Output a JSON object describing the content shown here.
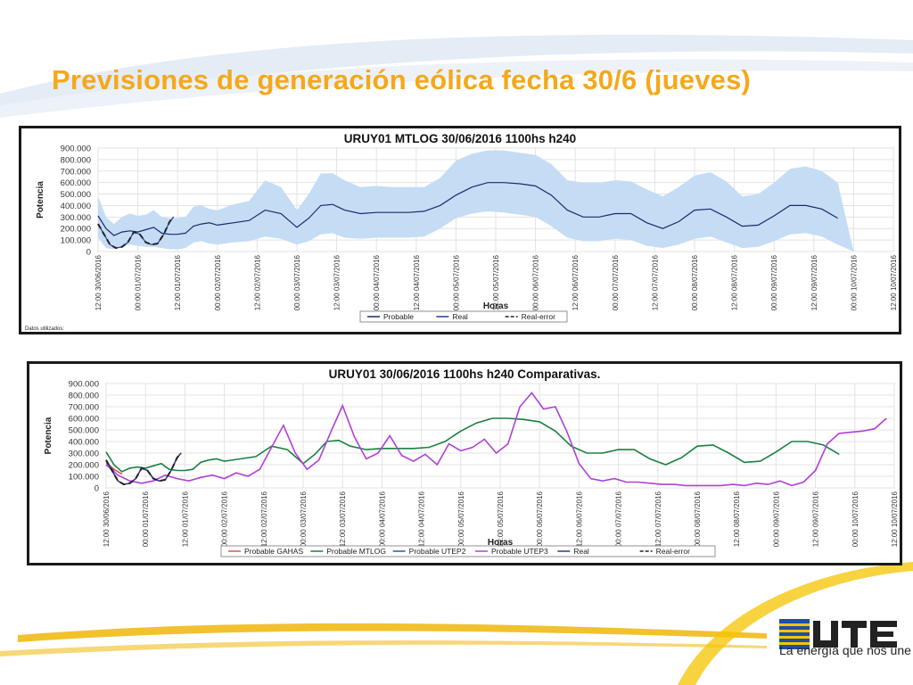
{
  "slide": {
    "title": "Previsiones de generación eólica fecha 30/6 (jueves)",
    "colors": {
      "title": "#f5a81a",
      "accent_line": "#f2c12e",
      "swoosh": "#c9d9ec"
    }
  },
  "logo": {
    "text": "UTE",
    "tagline": "La energía que nos une",
    "colors": {
      "blue": "#1f4fa0",
      "yellow": "#f5c400",
      "dark": "#222222"
    }
  },
  "chart_data": [
    {
      "type": "area",
      "title": "URUY01  MTLOG  30/06/2016  1100hs   h240",
      "xlabel": "Horas",
      "ylabel": "Potencia",
      "ylim": [
        0,
        900000
      ],
      "yticks": [
        "900.000",
        "800.000",
        "700.000",
        "600.000",
        "500.000",
        "400.000",
        "300.000",
        "200.000",
        "100.000",
        "0"
      ],
      "ytick_values": [
        900000,
        800000,
        700000,
        600000,
        500000,
        400000,
        300000,
        200000,
        100000,
        0
      ],
      "xticks": [
        "12:00 30/06/2016",
        "00:00 01/07/2016",
        "12:00 01/07/2016",
        "00:00 02/07/2016",
        "12:00 02/07/2016",
        "00:00 03/07/2016",
        "12:00 03/07/2016",
        "00:00 04/07/2016",
        "12:00 04/07/2016",
        "00:00 05/07/2016",
        "12:00 05/07/2016",
        "00:00 06/07/2016",
        "12:00 06/07/2016",
        "00:00 07/07/2016",
        "12:00 07/07/2016",
        "00:00 08/07/2016",
        "12:00 08/07/2016",
        "00:00 09/07/2016",
        "12:00 09/07/2016",
        "00:00 10/07/2016",
        "12:00 10/07/2016"
      ],
      "xlim": [
        0,
        20
      ],
      "grid": true,
      "legend": {
        "position": "bottom",
        "entries": [
          "Probable",
          "Real",
          "Real-error"
        ]
      },
      "footnote": "Datos utilizados:",
      "band": {
        "name": "",
        "color": "#c5dcf5",
        "x": [
          0,
          0.2,
          0.4,
          0.6,
          0.8,
          1.0,
          1.2,
          1.4,
          1.6,
          1.8,
          2.0,
          2.2,
          2.4,
          2.6,
          2.8,
          3.0,
          3.4,
          3.8,
          4.2,
          4.6,
          5.0,
          5.3,
          5.6,
          5.9,
          6.2,
          6.6,
          7.0,
          7.4,
          7.8,
          8.2,
          8.6,
          9.0,
          9.4,
          9.8,
          10.2,
          10.6,
          11.0,
          11.4,
          11.8,
          12.2,
          12.6,
          13.0,
          13.4,
          13.8,
          14.2,
          14.6,
          15.0,
          15.4,
          15.8,
          16.2,
          16.6,
          17.0,
          17.4,
          17.8,
          18.2,
          18.6,
          19.0,
          19.4,
          19.8
        ],
        "upper": [
          480000,
          300000,
          240000,
          300000,
          330000,
          310000,
          320000,
          360000,
          300000,
          290000,
          290000,
          300000,
          390000,
          400000,
          370000,
          360000,
          410000,
          440000,
          620000,
          560000,
          360000,
          500000,
          680000,
          680000,
          620000,
          560000,
          570000,
          560000,
          560000,
          560000,
          640000,
          790000,
          850000,
          880000,
          880000,
          860000,
          840000,
          760000,
          620000,
          600000,
          600000,
          620000,
          610000,
          540000,
          480000,
          560000,
          660000,
          690000,
          610000,
          480000,
          500000,
          600000,
          720000,
          740000,
          700000,
          600000,
          0,
          0,
          0
        ],
        "lower": [
          120000,
          30000,
          20000,
          40000,
          60000,
          50000,
          40000,
          40000,
          30000,
          20000,
          20000,
          30000,
          80000,
          90000,
          70000,
          60000,
          80000,
          90000,
          130000,
          110000,
          60000,
          90000,
          150000,
          160000,
          120000,
          110000,
          120000,
          120000,
          120000,
          130000,
          200000,
          290000,
          330000,
          350000,
          340000,
          320000,
          300000,
          220000,
          120000,
          90000,
          90000,
          110000,
          100000,
          50000,
          30000,
          60000,
          110000,
          130000,
          80000,
          30000,
          40000,
          90000,
          150000,
          160000,
          130000,
          60000,
          0,
          0,
          0
        ]
      },
      "series": [
        {
          "name": "Probable",
          "color": "#1b2a6b",
          "x": [
            0,
            0.2,
            0.4,
            0.6,
            0.8,
            1.0,
            1.2,
            1.4,
            1.6,
            1.8,
            2.0,
            2.2,
            2.4,
            2.6,
            2.8,
            3.0,
            3.4,
            3.8,
            4.2,
            4.6,
            5.0,
            5.3,
            5.6,
            5.9,
            6.2,
            6.6,
            7.0,
            7.4,
            7.8,
            8.2,
            8.6,
            9.0,
            9.4,
            9.8,
            10.2,
            10.6,
            11.0,
            11.4,
            11.8,
            12.2,
            12.6,
            13.0,
            13.4,
            13.8,
            14.2,
            14.6,
            15.0,
            15.4,
            15.8,
            16.2,
            16.6,
            17.0,
            17.4,
            17.8,
            18.2,
            18.6
          ],
          "values": [
            310000,
            200000,
            140000,
            170000,
            180000,
            170000,
            190000,
            210000,
            160000,
            150000,
            150000,
            160000,
            220000,
            240000,
            250000,
            230000,
            250000,
            270000,
            360000,
            330000,
            210000,
            290000,
            400000,
            410000,
            360000,
            330000,
            340000,
            340000,
            340000,
            350000,
            400000,
            490000,
            560000,
            600000,
            600000,
            590000,
            570000,
            490000,
            360000,
            300000,
            300000,
            330000,
            330000,
            250000,
            200000,
            260000,
            360000,
            370000,
            300000,
            220000,
            230000,
            310000,
            400000,
            400000,
            370000,
            290000
          ]
        },
        {
          "name": "Real",
          "color": "#2b3a8b",
          "x": [
            0,
            0.15,
            0.3,
            0.45,
            0.6,
            0.75,
            0.9,
            1.05,
            1.2,
            1.35,
            1.5,
            1.65,
            1.8,
            1.9
          ],
          "values": [
            240000,
            150000,
            60000,
            30000,
            40000,
            80000,
            170000,
            150000,
            80000,
            60000,
            70000,
            150000,
            260000,
            300000
          ]
        },
        {
          "name": "Real-error",
          "color": "#222222",
          "dashed": true,
          "x": [
            0,
            0.15,
            0.3,
            0.45,
            0.6,
            0.75,
            0.9,
            1.05,
            1.2,
            1.35,
            1.5,
            1.65,
            1.8,
            1.9
          ],
          "values": [
            240000,
            150000,
            60000,
            30000,
            40000,
            80000,
            170000,
            150000,
            80000,
            60000,
            70000,
            150000,
            260000,
            300000
          ]
        }
      ]
    },
    {
      "type": "line",
      "title": "URUY01  30/06/2016  1100hs   h240  Comparativas.",
      "xlabel": "Horas",
      "ylabel": "Potencia",
      "ylim": [
        0,
        900000
      ],
      "yticks": [
        "900.000",
        "800.000",
        "700.000",
        "600.000",
        "500.000",
        "400.000",
        "300.000",
        "200.000",
        "100.000",
        "0"
      ],
      "ytick_values": [
        900000,
        800000,
        700000,
        600000,
        500000,
        400000,
        300000,
        200000,
        100000,
        0
      ],
      "xticks": [
        "12:00 30/06/2016",
        "00:00 01/07/2016",
        "12:00 01/07/2016",
        "00:00 02/07/2016",
        "12:00 02/07/2016",
        "00:00 03/07/2016",
        "12:00 03/07/2016",
        "00:00 04/07/2016",
        "12:00 04/07/2016",
        "00:00 05/07/2016",
        "12:00 05/07/2016",
        "00:00 06/07/2016",
        "12:00 06/07/2016",
        "00:00 07/07/2016",
        "12:00 07/07/2016",
        "00:00 08/07/2016",
        "12:00 08/07/2016",
        "00:00 09/07/2016",
        "12:00 09/07/2016",
        "00:00 10/07/2016",
        "12:00 10/07/2016"
      ],
      "xlim": [
        0,
        20
      ],
      "grid": true,
      "legend": {
        "position": "bottom",
        "entries": [
          "Probable GAHAS",
          "Probable MTLOG",
          "Probable UTEP2",
          "Probable UTEP3",
          "Real",
          "Real-error"
        ]
      },
      "series": [
        {
          "name": "Probable GAHAS",
          "color": "#e05050",
          "x": [
            0,
            0.2,
            0.4
          ],
          "values": [
            220000,
            160000,
            120000
          ]
        },
        {
          "name": "Probable MTLOG",
          "color": "#1a8040",
          "x": [
            0,
            0.2,
            0.4,
            0.6,
            0.8,
            1.0,
            1.2,
            1.4,
            1.6,
            1.8,
            2.0,
            2.2,
            2.4,
            2.6,
            2.8,
            3.0,
            3.4,
            3.8,
            4.2,
            4.6,
            5.0,
            5.3,
            5.6,
            5.9,
            6.2,
            6.6,
            7.0,
            7.4,
            7.8,
            8.2,
            8.6,
            9.0,
            9.4,
            9.8,
            10.2,
            10.6,
            11.0,
            11.4,
            11.8,
            12.2,
            12.6,
            13.0,
            13.4,
            13.8,
            14.2,
            14.6,
            15.0,
            15.4,
            15.8,
            16.2,
            16.6,
            17.0,
            17.4,
            17.8,
            18.2,
            18.6
          ],
          "values": [
            310000,
            200000,
            140000,
            170000,
            180000,
            170000,
            190000,
            210000,
            160000,
            150000,
            150000,
            160000,
            220000,
            240000,
            250000,
            230000,
            250000,
            270000,
            360000,
            330000,
            210000,
            290000,
            400000,
            410000,
            360000,
            330000,
            340000,
            340000,
            340000,
            350000,
            400000,
            490000,
            560000,
            600000,
            600000,
            590000,
            570000,
            490000,
            360000,
            300000,
            300000,
            330000,
            330000,
            250000,
            200000,
            260000,
            360000,
            370000,
            300000,
            220000,
            230000,
            310000,
            400000,
            400000,
            370000,
            290000
          ]
        },
        {
          "name": "Probable UTEP2",
          "color": "#3050c0",
          "x": [
            0,
            0.2
          ],
          "values": [
            200000,
            150000
          ]
        },
        {
          "name": "Probable UTEP3",
          "color": "#b040d8",
          "x": [
            0,
            0.3,
            0.6,
            0.9,
            1.2,
            1.5,
            1.8,
            2.1,
            2.4,
            2.7,
            3.0,
            3.3,
            3.6,
            3.9,
            4.2,
            4.5,
            4.8,
            5.1,
            5.4,
            5.7,
            6.0,
            6.3,
            6.6,
            6.9,
            7.2,
            7.5,
            7.8,
            8.1,
            8.4,
            8.7,
            9.0,
            9.3,
            9.6,
            9.9,
            10.2,
            10.5,
            10.8,
            11.1,
            11.4,
            11.7,
            12.0,
            12.3,
            12.6,
            12.9,
            13.2,
            13.5,
            13.8,
            14.1,
            14.4,
            14.7,
            15.0,
            15.3,
            15.6,
            15.9,
            16.2,
            16.5,
            16.8,
            17.1,
            17.4,
            17.7,
            18.0,
            18.3,
            18.6,
            18.9,
            19.2,
            19.5,
            19.8
          ],
          "values": [
            200000,
            110000,
            60000,
            40000,
            60000,
            110000,
            80000,
            60000,
            90000,
            110000,
            80000,
            130000,
            100000,
            160000,
            350000,
            540000,
            300000,
            160000,
            240000,
            480000,
            710000,
            440000,
            250000,
            300000,
            450000,
            280000,
            230000,
            290000,
            200000,
            380000,
            320000,
            350000,
            420000,
            300000,
            380000,
            700000,
            820000,
            680000,
            700000,
            480000,
            210000,
            80000,
            60000,
            80000,
            50000,
            50000,
            40000,
            30000,
            30000,
            20000,
            20000,
            20000,
            20000,
            30000,
            20000,
            40000,
            30000,
            60000,
            20000,
            50000,
            150000,
            380000,
            470000,
            480000,
            490000,
            510000,
            600000
          ]
        },
        {
          "name": "Real",
          "color": "#2b3a8b",
          "x": [
            0,
            0.15,
            0.3,
            0.45,
            0.6,
            0.75,
            0.9,
            1.05,
            1.2,
            1.35,
            1.5,
            1.65,
            1.8,
            1.9
          ],
          "values": [
            240000,
            150000,
            60000,
            30000,
            40000,
            80000,
            170000,
            150000,
            80000,
            60000,
            70000,
            150000,
            260000,
            300000
          ]
        },
        {
          "name": "Real-error",
          "color": "#222222",
          "dashed": true,
          "x": [
            0,
            0.15,
            0.3,
            0.45,
            0.6,
            0.75,
            0.9,
            1.05,
            1.2,
            1.35,
            1.5,
            1.65,
            1.8,
            1.9
          ],
          "values": [
            240000,
            150000,
            60000,
            30000,
            40000,
            80000,
            170000,
            150000,
            80000,
            60000,
            70000,
            150000,
            260000,
            300000
          ]
        }
      ]
    }
  ]
}
